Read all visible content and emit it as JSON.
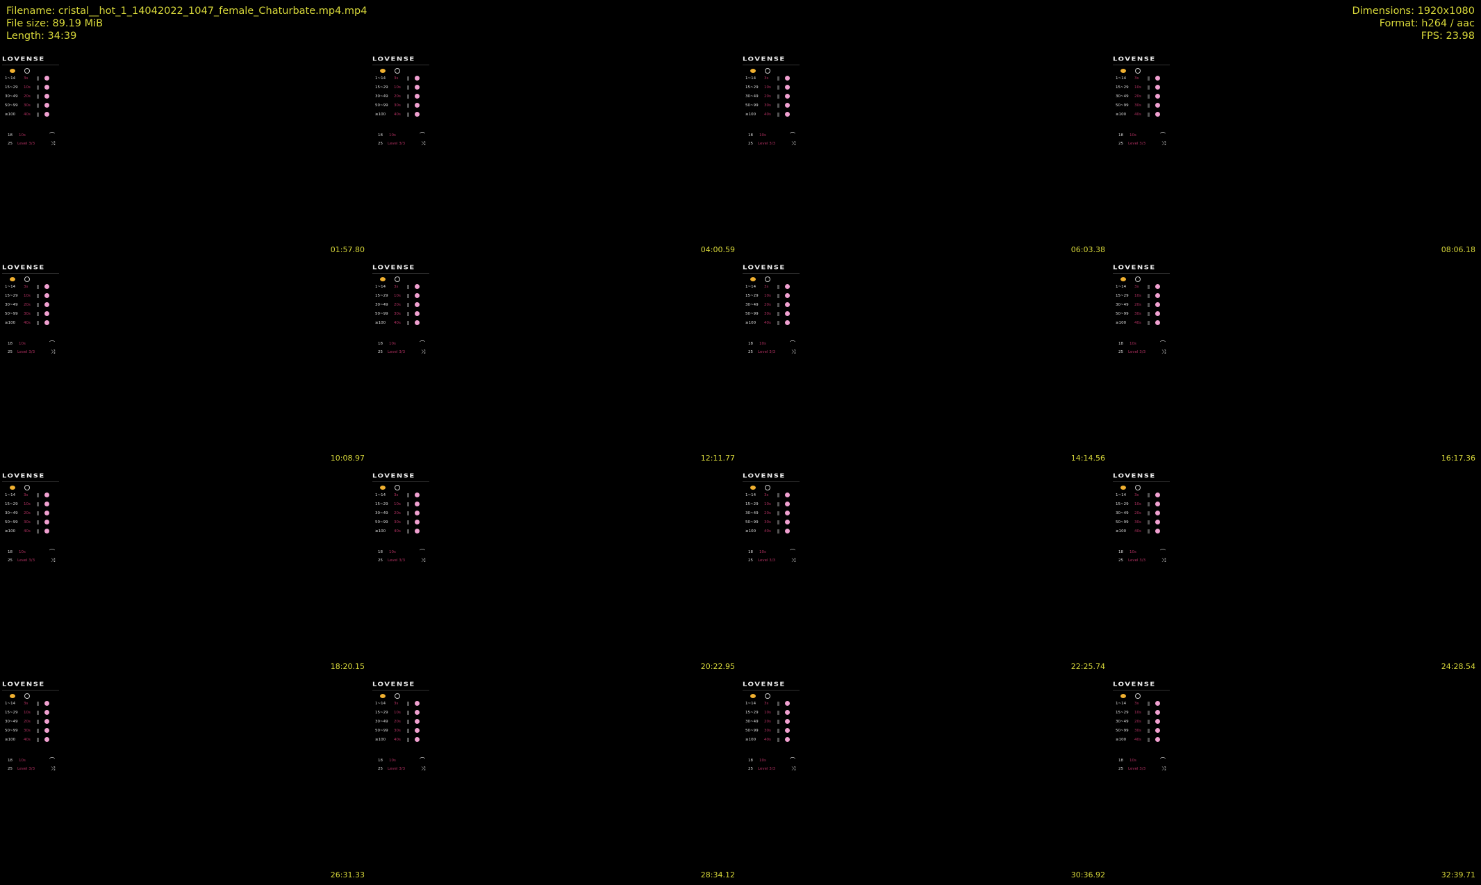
{
  "header": {
    "filename": "Filename: cristal__hot_1_14042022_1047_female_Chaturbate.mp4.mp4",
    "file_size": "File size: 89.19 MiB",
    "length": "Length: 34:39",
    "dimensions": "Dimensions: 1920x1080",
    "format": "Format: h264 / aac",
    "fps": "FPS: 23.98"
  },
  "overlay": {
    "logo": "LOVENSE",
    "levels": [
      {
        "tokens": "1~14",
        "duration": "3s"
      },
      {
        "tokens": "15~29",
        "duration": "10s"
      },
      {
        "tokens": "30~49",
        "duration": "20s"
      },
      {
        "tokens": "50~99",
        "duration": "30s"
      },
      {
        "tokens": "≥100",
        "duration": "40s"
      }
    ],
    "special": [
      {
        "tokens": "18",
        "value": "10s"
      },
      {
        "tokens": "25",
        "value": "Level 3/3"
      }
    ]
  },
  "thumbnails": [
    {
      "timestamp": "01:57.80"
    },
    {
      "timestamp": "04:00.59"
    },
    {
      "timestamp": "06:03.38"
    },
    {
      "timestamp": "08:06.18"
    },
    {
      "timestamp": "10:08.97"
    },
    {
      "timestamp": "12:11.77"
    },
    {
      "timestamp": "14:14.56"
    },
    {
      "timestamp": "16:17.36"
    },
    {
      "timestamp": "18:20.15"
    },
    {
      "timestamp": "20:22.95"
    },
    {
      "timestamp": "22:25.74"
    },
    {
      "timestamp": "24:28.54"
    },
    {
      "timestamp": "26:31.33"
    },
    {
      "timestamp": "28:34.12"
    },
    {
      "timestamp": "30:36.92"
    },
    {
      "timestamp": "32:39.71"
    }
  ],
  "colors": {
    "text": "#d8d83a",
    "background": "#000000",
    "accent": "#b03060"
  }
}
